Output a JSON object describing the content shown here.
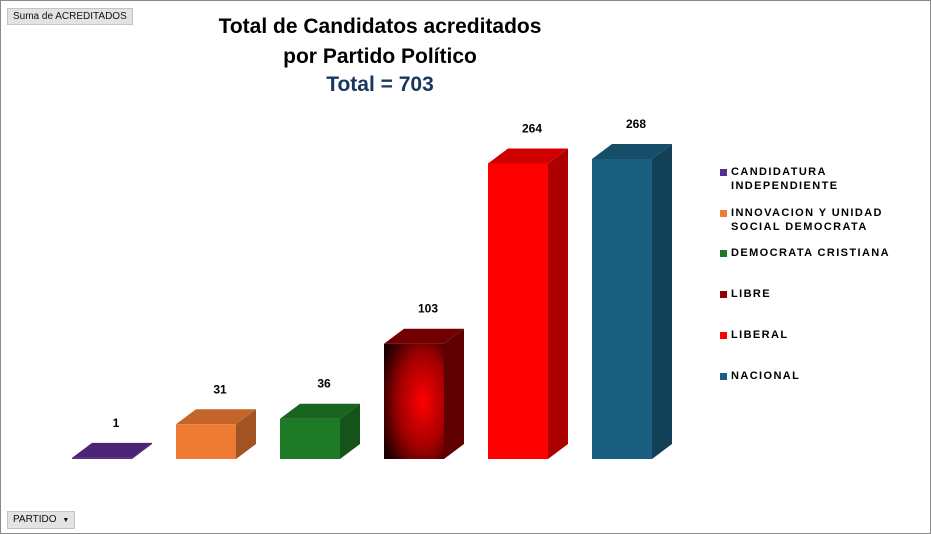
{
  "pivot": {
    "value_field": "Suma de ACREDITADOS",
    "axis_field": "PARTIDO",
    "axis_dropdown_icon": "chevron-down-icon"
  },
  "chart_data": {
    "type": "bar",
    "style": "3d-column",
    "title_line1": "Total de Candidatos acreditados",
    "title_line2": "por Partido Político",
    "subtitle": "Total = 703",
    "categories": [
      "CANDIDATURA INDEPENDIENTE",
      "INNOVACION Y UNIDAD SOCIAL DEMOCRATA",
      "DEMOCRATA CRISTIANA",
      "LIBRE",
      "LIBERAL",
      "NACIONAL"
    ],
    "values": [
      1,
      31,
      36,
      103,
      264,
      268
    ],
    "data_labels": [
      "1",
      "31",
      "36",
      "103",
      "264",
      "268"
    ],
    "colors": [
      "#5b2c8f",
      "#ee7a34",
      "#1e7a26",
      "#8b0000",
      "#ff0000",
      "#1b5f80"
    ],
    "legend": {
      "position": "right",
      "items": [
        {
          "line1": "CANDIDATURA",
          "line2": "INDEPENDIENTE",
          "color": "#5b2c8f"
        },
        {
          "line1": "INNOVACION Y UNIDAD",
          "line2": "SOCIAL DEMOCRATA",
          "color": "#ee7a34"
        },
        {
          "line1": "DEMOCRATA CRISTIANA",
          "line2": "",
          "color": "#1e7a26"
        },
        {
          "line1": "LIBRE",
          "line2": "",
          "color": "#8b0000"
        },
        {
          "line1": "LIBERAL",
          "line2": "",
          "color": "#ff0000"
        },
        {
          "line1": "NACIONAL",
          "line2": "",
          "color": "#1b5f80"
        }
      ]
    },
    "ylim": [
      0,
      268
    ],
    "gridlines": false,
    "xlabel": "",
    "ylabel": ""
  }
}
